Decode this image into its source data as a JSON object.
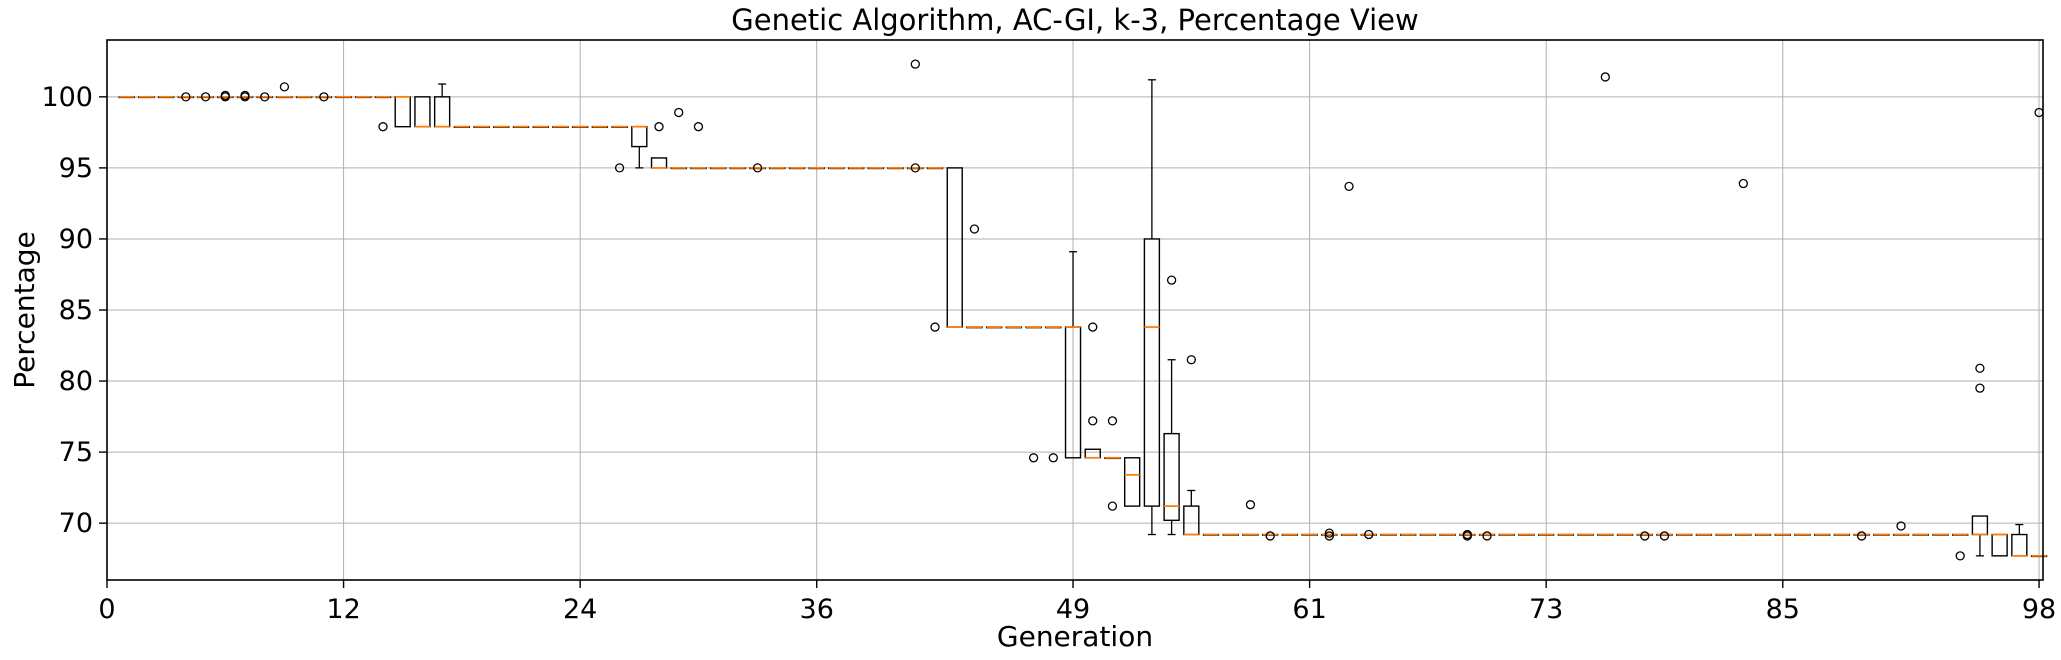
{
  "chart_data": {
    "type": "box",
    "title": "Genetic Algorithm, AC-GI, k-3, Percentage View",
    "xlabel": "Generation",
    "ylabel": "Percentage",
    "xlim": [
      0,
      98.2
    ],
    "ylim": [
      66.0,
      104.0
    ],
    "grid": true,
    "x_ticks": [
      0,
      12,
      24,
      36,
      49,
      61,
      73,
      85,
      98
    ],
    "y_ticks": [
      70,
      75,
      80,
      85,
      90,
      95,
      100
    ],
    "colors": {
      "box": "#000000",
      "median": "#ff7f0e",
      "grid": "#b0b0b0",
      "flier": "#000000"
    },
    "boxes": [
      {
        "x": 1,
        "q1": 100,
        "median": 100,
        "q3": 100,
        "whisker_low": 100,
        "whisker_high": 100,
        "fliers": []
      },
      {
        "x": 2,
        "q1": 100,
        "median": 100,
        "q3": 100,
        "whisker_low": 100,
        "whisker_high": 100,
        "fliers": []
      },
      {
        "x": 3,
        "q1": 100,
        "median": 100,
        "q3": 100,
        "whisker_low": 100,
        "whisker_high": 100,
        "fliers": []
      },
      {
        "x": 4,
        "q1": 100,
        "median": 100,
        "q3": 100,
        "whisker_low": 100,
        "whisker_high": 100,
        "fliers": [
          100
        ]
      },
      {
        "x": 5,
        "q1": 100,
        "median": 100,
        "q3": 100,
        "whisker_low": 100,
        "whisker_high": 100,
        "fliers": [
          100
        ]
      },
      {
        "x": 6,
        "q1": 100,
        "median": 100,
        "q3": 100,
        "whisker_low": 100,
        "whisker_high": 100,
        "fliers": [
          100,
          100.1
        ]
      },
      {
        "x": 7,
        "q1": 100,
        "median": 100,
        "q3": 100,
        "whisker_low": 100,
        "whisker_high": 100,
        "fliers": [
          100,
          100.1
        ]
      },
      {
        "x": 8,
        "q1": 100,
        "median": 100,
        "q3": 100,
        "whisker_low": 100,
        "whisker_high": 100,
        "fliers": [
          100
        ]
      },
      {
        "x": 9,
        "q1": 100,
        "median": 100,
        "q3": 100,
        "whisker_low": 100,
        "whisker_high": 100,
        "fliers": [
          100.7
        ]
      },
      {
        "x": 10,
        "q1": 100,
        "median": 100,
        "q3": 100,
        "whisker_low": 100,
        "whisker_high": 100,
        "fliers": []
      },
      {
        "x": 11,
        "q1": 100,
        "median": 100,
        "q3": 100,
        "whisker_low": 100,
        "whisker_high": 100,
        "fliers": [
          100
        ]
      },
      {
        "x": 12,
        "q1": 100,
        "median": 100,
        "q3": 100,
        "whisker_low": 100,
        "whisker_high": 100,
        "fliers": []
      },
      {
        "x": 13,
        "q1": 100,
        "median": 100,
        "q3": 100,
        "whisker_low": 100,
        "whisker_high": 100,
        "fliers": []
      },
      {
        "x": 14,
        "q1": 100,
        "median": 100,
        "q3": 100,
        "whisker_low": 100,
        "whisker_high": 100,
        "fliers": [
          97.9
        ]
      },
      {
        "x": 15,
        "q1": 97.9,
        "median": 100,
        "q3": 100,
        "whisker_low": 97.9,
        "whisker_high": 100,
        "fliers": []
      },
      {
        "x": 16,
        "q1": 97.9,
        "median": 97.9,
        "q3": 100,
        "whisker_low": 97.9,
        "whisker_high": 100,
        "fliers": []
      },
      {
        "x": 17,
        "q1": 97.9,
        "median": 97.9,
        "q3": 100,
        "whisker_low": 97.9,
        "whisker_high": 100.9,
        "fliers": []
      },
      {
        "x": 18,
        "q1": 97.9,
        "median": 97.9,
        "q3": 97.9,
        "whisker_low": 97.9,
        "whisker_high": 97.9,
        "fliers": []
      },
      {
        "x": 19,
        "q1": 97.9,
        "median": 97.9,
        "q3": 97.9,
        "whisker_low": 97.9,
        "whisker_high": 97.9,
        "fliers": []
      },
      {
        "x": 20,
        "q1": 97.9,
        "median": 97.9,
        "q3": 97.9,
        "whisker_low": 97.9,
        "whisker_high": 97.9,
        "fliers": []
      },
      {
        "x": 21,
        "q1": 97.9,
        "median": 97.9,
        "q3": 97.9,
        "whisker_low": 97.9,
        "whisker_high": 97.9,
        "fliers": []
      },
      {
        "x": 22,
        "q1": 97.9,
        "median": 97.9,
        "q3": 97.9,
        "whisker_low": 97.9,
        "whisker_high": 97.9,
        "fliers": []
      },
      {
        "x": 23,
        "q1": 97.9,
        "median": 97.9,
        "q3": 97.9,
        "whisker_low": 97.9,
        "whisker_high": 97.9,
        "fliers": []
      },
      {
        "x": 24,
        "q1": 97.9,
        "median": 97.9,
        "q3": 97.9,
        "whisker_low": 97.9,
        "whisker_high": 97.9,
        "fliers": []
      },
      {
        "x": 25,
        "q1": 97.9,
        "median": 97.9,
        "q3": 97.9,
        "whisker_low": 97.9,
        "whisker_high": 97.9,
        "fliers": []
      },
      {
        "x": 26,
        "q1": 97.9,
        "median": 97.9,
        "q3": 97.9,
        "whisker_low": 97.9,
        "whisker_high": 97.9,
        "fliers": [
          95.0
        ]
      },
      {
        "x": 27,
        "q1": 96.5,
        "median": 97.9,
        "q3": 97.9,
        "whisker_low": 95.0,
        "whisker_high": 97.9,
        "fliers": []
      },
      {
        "x": 28,
        "q1": 95.0,
        "median": 95.0,
        "q3": 95.7,
        "whisker_low": 95.0,
        "whisker_high": 95.7,
        "fliers": [
          97.9
        ]
      },
      {
        "x": 29,
        "q1": 95.0,
        "median": 95.0,
        "q3": 95.0,
        "whisker_low": 95.0,
        "whisker_high": 95.0,
        "fliers": [
          98.9
        ]
      },
      {
        "x": 30,
        "q1": 95.0,
        "median": 95.0,
        "q3": 95.0,
        "whisker_low": 95.0,
        "whisker_high": 95.0,
        "fliers": [
          97.9
        ]
      },
      {
        "x": 31,
        "q1": 95.0,
        "median": 95.0,
        "q3": 95.0,
        "whisker_low": 95.0,
        "whisker_high": 95.0,
        "fliers": []
      },
      {
        "x": 32,
        "q1": 95.0,
        "median": 95.0,
        "q3": 95.0,
        "whisker_low": 95.0,
        "whisker_high": 95.0,
        "fliers": []
      },
      {
        "x": 33,
        "q1": 95.0,
        "median": 95.0,
        "q3": 95.0,
        "whisker_low": 95.0,
        "whisker_high": 95.0,
        "fliers": [
          95.0
        ]
      },
      {
        "x": 34,
        "q1": 95.0,
        "median": 95.0,
        "q3": 95.0,
        "whisker_low": 95.0,
        "whisker_high": 95.0,
        "fliers": []
      },
      {
        "x": 35,
        "q1": 95.0,
        "median": 95.0,
        "q3": 95.0,
        "whisker_low": 95.0,
        "whisker_high": 95.0,
        "fliers": []
      },
      {
        "x": 36,
        "q1": 95.0,
        "median": 95.0,
        "q3": 95.0,
        "whisker_low": 95.0,
        "whisker_high": 95.0,
        "fliers": []
      },
      {
        "x": 37,
        "q1": 95.0,
        "median": 95.0,
        "q3": 95.0,
        "whisker_low": 95.0,
        "whisker_high": 95.0,
        "fliers": []
      },
      {
        "x": 38,
        "q1": 95.0,
        "median": 95.0,
        "q3": 95.0,
        "whisker_low": 95.0,
        "whisker_high": 95.0,
        "fliers": []
      },
      {
        "x": 39,
        "q1": 95.0,
        "median": 95.0,
        "q3": 95.0,
        "whisker_low": 95.0,
        "whisker_high": 95.0,
        "fliers": []
      },
      {
        "x": 40,
        "q1": 95.0,
        "median": 95.0,
        "q3": 95.0,
        "whisker_low": 95.0,
        "whisker_high": 95.0,
        "fliers": []
      },
      {
        "x": 41,
        "q1": 95.0,
        "median": 95.0,
        "q3": 95.0,
        "whisker_low": 95.0,
        "whisker_high": 95.0,
        "fliers": [
          102.3,
          95.0
        ]
      },
      {
        "x": 42,
        "q1": 95.0,
        "median": 95.0,
        "q3": 95.0,
        "whisker_low": 95.0,
        "whisker_high": 95.0,
        "fliers": [
          83.8
        ]
      },
      {
        "x": 43,
        "q1": 83.8,
        "median": 83.8,
        "q3": 95.0,
        "whisker_low": 83.8,
        "whisker_high": 95.0,
        "fliers": []
      },
      {
        "x": 44,
        "q1": 83.8,
        "median": 83.8,
        "q3": 83.8,
        "whisker_low": 83.8,
        "whisker_high": 83.8,
        "fliers": [
          90.7
        ]
      },
      {
        "x": 45,
        "q1": 83.8,
        "median": 83.8,
        "q3": 83.8,
        "whisker_low": 83.8,
        "whisker_high": 83.8,
        "fliers": []
      },
      {
        "x": 46,
        "q1": 83.8,
        "median": 83.8,
        "q3": 83.8,
        "whisker_low": 83.8,
        "whisker_high": 83.8,
        "fliers": []
      },
      {
        "x": 47,
        "q1": 83.8,
        "median": 83.8,
        "q3": 83.8,
        "whisker_low": 83.8,
        "whisker_high": 83.8,
        "fliers": [
          74.6
        ]
      },
      {
        "x": 48,
        "q1": 83.8,
        "median": 83.8,
        "q3": 83.8,
        "whisker_low": 83.8,
        "whisker_high": 83.8,
        "fliers": [
          74.6
        ]
      },
      {
        "x": 49,
        "q1": 74.6,
        "median": 83.8,
        "q3": 83.8,
        "whisker_low": 74.6,
        "whisker_high": 89.1,
        "fliers": []
      },
      {
        "x": 50,
        "q1": 74.6,
        "median": 74.6,
        "q3": 75.2,
        "whisker_low": 74.6,
        "whisker_high": 75.2,
        "fliers": [
          83.8,
          77.2
        ]
      },
      {
        "x": 51,
        "q1": 74.6,
        "median": 74.6,
        "q3": 74.6,
        "whisker_low": 74.6,
        "whisker_high": 74.6,
        "fliers": [
          77.2,
          71.2
        ]
      },
      {
        "x": 52,
        "q1": 71.2,
        "median": 73.4,
        "q3": 74.6,
        "whisker_low": 71.2,
        "whisker_high": 74.6,
        "fliers": []
      },
      {
        "x": 53,
        "q1": 71.2,
        "median": 83.8,
        "q3": 90.0,
        "whisker_low": 69.2,
        "whisker_high": 101.2,
        "fliers": []
      },
      {
        "x": 54,
        "q1": 70.2,
        "median": 71.2,
        "q3": 76.3,
        "whisker_low": 69.2,
        "whisker_high": 81.5,
        "fliers": [
          87.1
        ]
      },
      {
        "x": 55,
        "q1": 69.2,
        "median": 69.2,
        "q3": 71.2,
        "whisker_low": 69.2,
        "whisker_high": 72.3,
        "fliers": [
          81.5
        ]
      },
      {
        "x": 56,
        "q1": 69.2,
        "median": 69.2,
        "q3": 69.2,
        "whisker_low": 69.2,
        "whisker_high": 69.2,
        "fliers": []
      },
      {
        "x": 57,
        "q1": 69.2,
        "median": 69.2,
        "q3": 69.2,
        "whisker_low": 69.2,
        "whisker_high": 69.2,
        "fliers": []
      },
      {
        "x": 58,
        "q1": 69.2,
        "median": 69.2,
        "q3": 69.2,
        "whisker_low": 69.2,
        "whisker_high": 69.2,
        "fliers": [
          71.3
        ]
      },
      {
        "x": 59,
        "q1": 69.2,
        "median": 69.2,
        "q3": 69.2,
        "whisker_low": 69.2,
        "whisker_high": 69.2,
        "fliers": [
          69.1
        ]
      },
      {
        "x": 60,
        "q1": 69.2,
        "median": 69.2,
        "q3": 69.2,
        "whisker_low": 69.2,
        "whisker_high": 69.2,
        "fliers": []
      },
      {
        "x": 61,
        "q1": 69.2,
        "median": 69.2,
        "q3": 69.2,
        "whisker_low": 69.2,
        "whisker_high": 69.2,
        "fliers": []
      },
      {
        "x": 62,
        "q1": 69.2,
        "median": 69.2,
        "q3": 69.2,
        "whisker_low": 69.2,
        "whisker_high": 69.2,
        "fliers": [
          69.1,
          69.3
        ]
      },
      {
        "x": 63,
        "q1": 69.2,
        "median": 69.2,
        "q3": 69.2,
        "whisker_low": 69.2,
        "whisker_high": 69.2,
        "fliers": [
          93.7
        ]
      },
      {
        "x": 64,
        "q1": 69.2,
        "median": 69.2,
        "q3": 69.2,
        "whisker_low": 69.2,
        "whisker_high": 69.2,
        "fliers": [
          69.2
        ]
      },
      {
        "x": 65,
        "q1": 69.2,
        "median": 69.2,
        "q3": 69.2,
        "whisker_low": 69.2,
        "whisker_high": 69.2,
        "fliers": []
      },
      {
        "x": 66,
        "q1": 69.2,
        "median": 69.2,
        "q3": 69.2,
        "whisker_low": 69.2,
        "whisker_high": 69.2,
        "fliers": []
      },
      {
        "x": 67,
        "q1": 69.2,
        "median": 69.2,
        "q3": 69.2,
        "whisker_low": 69.2,
        "whisker_high": 69.2,
        "fliers": []
      },
      {
        "x": 68,
        "q1": 69.2,
        "median": 69.2,
        "q3": 69.2,
        "whisker_low": 69.2,
        "whisker_high": 69.2,
        "fliers": []
      },
      {
        "x": 69,
        "q1": 69.2,
        "median": 69.2,
        "q3": 69.2,
        "whisker_low": 69.2,
        "whisker_high": 69.2,
        "fliers": [
          69.1,
          69.2
        ]
      },
      {
        "x": 70,
        "q1": 69.2,
        "median": 69.2,
        "q3": 69.2,
        "whisker_low": 69.2,
        "whisker_high": 69.2,
        "fliers": [
          69.1
        ]
      },
      {
        "x": 71,
        "q1": 69.2,
        "median": 69.2,
        "q3": 69.2,
        "whisker_low": 69.2,
        "whisker_high": 69.2,
        "fliers": []
      },
      {
        "x": 72,
        "q1": 69.2,
        "median": 69.2,
        "q3": 69.2,
        "whisker_low": 69.2,
        "whisker_high": 69.2,
        "fliers": []
      },
      {
        "x": 73,
        "q1": 69.2,
        "median": 69.2,
        "q3": 69.2,
        "whisker_low": 69.2,
        "whisker_high": 69.2,
        "fliers": []
      },
      {
        "x": 74,
        "q1": 69.2,
        "median": 69.2,
        "q3": 69.2,
        "whisker_low": 69.2,
        "whisker_high": 69.2,
        "fliers": []
      },
      {
        "x": 75,
        "q1": 69.2,
        "median": 69.2,
        "q3": 69.2,
        "whisker_low": 69.2,
        "whisker_high": 69.2,
        "fliers": []
      },
      {
        "x": 76,
        "q1": 69.2,
        "median": 69.2,
        "q3": 69.2,
        "whisker_low": 69.2,
        "whisker_high": 69.2,
        "fliers": [
          101.4
        ]
      },
      {
        "x": 77,
        "q1": 69.2,
        "median": 69.2,
        "q3": 69.2,
        "whisker_low": 69.2,
        "whisker_high": 69.2,
        "fliers": []
      },
      {
        "x": 78,
        "q1": 69.2,
        "median": 69.2,
        "q3": 69.2,
        "whisker_low": 69.2,
        "whisker_high": 69.2,
        "fliers": [
          69.1
        ]
      },
      {
        "x": 79,
        "q1": 69.2,
        "median": 69.2,
        "q3": 69.2,
        "whisker_low": 69.2,
        "whisker_high": 69.2,
        "fliers": [
          69.1
        ]
      },
      {
        "x": 80,
        "q1": 69.2,
        "median": 69.2,
        "q3": 69.2,
        "whisker_low": 69.2,
        "whisker_high": 69.2,
        "fliers": []
      },
      {
        "x": 81,
        "q1": 69.2,
        "median": 69.2,
        "q3": 69.2,
        "whisker_low": 69.2,
        "whisker_high": 69.2,
        "fliers": []
      },
      {
        "x": 82,
        "q1": 69.2,
        "median": 69.2,
        "q3": 69.2,
        "whisker_low": 69.2,
        "whisker_high": 69.2,
        "fliers": []
      },
      {
        "x": 83,
        "q1": 69.2,
        "median": 69.2,
        "q3": 69.2,
        "whisker_low": 69.2,
        "whisker_high": 69.2,
        "fliers": [
          93.9
        ]
      },
      {
        "x": 84,
        "q1": 69.2,
        "median": 69.2,
        "q3": 69.2,
        "whisker_low": 69.2,
        "whisker_high": 69.2,
        "fliers": []
      },
      {
        "x": 85,
        "q1": 69.2,
        "median": 69.2,
        "q3": 69.2,
        "whisker_low": 69.2,
        "whisker_high": 69.2,
        "fliers": []
      },
      {
        "x": 86,
        "q1": 69.2,
        "median": 69.2,
        "q3": 69.2,
        "whisker_low": 69.2,
        "whisker_high": 69.2,
        "fliers": []
      },
      {
        "x": 87,
        "q1": 69.2,
        "median": 69.2,
        "q3": 69.2,
        "whisker_low": 69.2,
        "whisker_high": 69.2,
        "fliers": []
      },
      {
        "x": 88,
        "q1": 69.2,
        "median": 69.2,
        "q3": 69.2,
        "whisker_low": 69.2,
        "whisker_high": 69.2,
        "fliers": []
      },
      {
        "x": 89,
        "q1": 69.2,
        "median": 69.2,
        "q3": 69.2,
        "whisker_low": 69.2,
        "whisker_high": 69.2,
        "fliers": [
          69.1
        ]
      },
      {
        "x": 90,
        "q1": 69.2,
        "median": 69.2,
        "q3": 69.2,
        "whisker_low": 69.2,
        "whisker_high": 69.2,
        "fliers": []
      },
      {
        "x": 91,
        "q1": 69.2,
        "median": 69.2,
        "q3": 69.2,
        "whisker_low": 69.2,
        "whisker_high": 69.2,
        "fliers": [
          69.8
        ]
      },
      {
        "x": 92,
        "q1": 69.2,
        "median": 69.2,
        "q3": 69.2,
        "whisker_low": 69.2,
        "whisker_high": 69.2,
        "fliers": []
      },
      {
        "x": 93,
        "q1": 69.2,
        "median": 69.2,
        "q3": 69.2,
        "whisker_low": 69.2,
        "whisker_high": 69.2,
        "fliers": []
      },
      {
        "x": 94,
        "q1": 69.2,
        "median": 69.2,
        "q3": 69.2,
        "whisker_low": 69.2,
        "whisker_high": 69.2,
        "fliers": [
          67.7
        ]
      },
      {
        "x": 95,
        "q1": 69.2,
        "median": 69.2,
        "q3": 70.5,
        "whisker_low": 67.7,
        "whisker_high": 70.5,
        "fliers": [
          80.9,
          79.5
        ]
      },
      {
        "x": 96,
        "q1": 67.7,
        "median": 69.2,
        "q3": 69.2,
        "whisker_low": 67.7,
        "whisker_high": 69.2,
        "fliers": []
      },
      {
        "x": 97,
        "q1": 67.7,
        "median": 67.7,
        "q3": 69.2,
        "whisker_low": 67.7,
        "whisker_high": 69.9,
        "fliers": []
      },
      {
        "x": 98,
        "q1": 67.7,
        "median": 67.7,
        "q3": 67.7,
        "whisker_low": 67.7,
        "whisker_high": 67.7,
        "fliers": [
          98.9
        ]
      }
    ]
  }
}
